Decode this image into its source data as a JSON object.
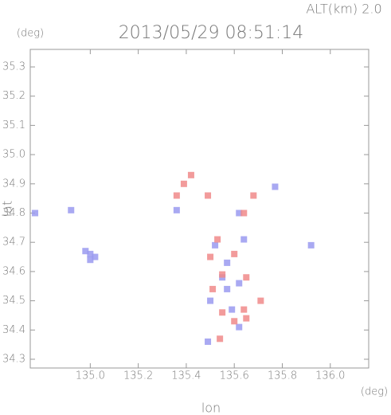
{
  "chart_data": {
    "type": "scatter",
    "title": "2013/05/29 08:51:14",
    "subtitle": "ALT(km) 2.0",
    "x_label": "lon",
    "y_label": "lat",
    "x_unit": "(deg)",
    "y_unit": "(deg)",
    "xlim": [
      134.75,
      136.16
    ],
    "ylim": [
      34.27,
      35.36
    ],
    "xticks": [
      {
        "value": 135,
        "label": "135.0"
      },
      135.2,
      135.4,
      135.6,
      135.8,
      {
        "value": 136,
        "label": "136.0"
      }
    ],
    "yticks": [
      34.3,
      34.4,
      34.5,
      34.6,
      34.7,
      34.8,
      34.9,
      {
        "value": 35,
        "label": "35.0"
      },
      35.1,
      35.2,
      35.3
    ],
    "series": [
      {
        "color": "#9a9af0",
        "x": [
          134.77,
          134.92,
          135.0,
          134.98,
          135.02,
          135.0,
          135.36,
          135.62,
          135.77,
          135.92,
          135.52,
          135.57,
          135.62,
          135.55,
          135.5,
          135.59,
          135.62,
          135.49,
          135.64,
          135.57
        ],
        "values": [
          34.8,
          34.81,
          34.66,
          34.67,
          34.65,
          34.64,
          34.81,
          34.8,
          34.89,
          34.69,
          34.69,
          34.63,
          34.56,
          34.58,
          34.5,
          34.47,
          34.41,
          34.36,
          34.71,
          34.54
        ]
      },
      {
        "color": "#f08a8a",
        "x": [
          135.42,
          135.39,
          135.36,
          135.49,
          135.68,
          135.64,
          135.53,
          135.5,
          135.6,
          135.55,
          135.65,
          135.51,
          135.71,
          135.64,
          135.55,
          135.6,
          135.54,
          135.65
        ],
        "values": [
          34.93,
          34.9,
          34.86,
          34.86,
          34.86,
          34.8,
          34.71,
          34.65,
          34.66,
          34.59,
          34.58,
          34.54,
          34.5,
          34.47,
          34.46,
          34.43,
          34.37,
          34.44
        ]
      }
    ]
  }
}
